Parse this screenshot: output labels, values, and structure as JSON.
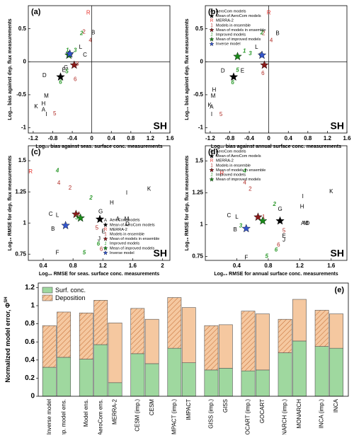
{
  "chart_data": [
    {
      "type": "scatter",
      "panel_label": "(a)",
      "annotation": "SH",
      "x_label": "Log₁₀ bias against seas. surface conc. measurements",
      "y_label": "Log₁₀ bias against dep. flux measurements",
      "xlim": [
        -1.3,
        1.6
      ],
      "ylim": [
        -1.08,
        0.85
      ],
      "xticks": [
        -1.2,
        -0.8,
        -0.4,
        0,
        0.4,
        0.8,
        1.2,
        1.6
      ],
      "yticks": [
        -1,
        -0.5,
        0,
        0.5
      ],
      "crosshair": {
        "x": 0,
        "y": 0
      },
      "series": [
        {
          "name": "AeroCom models",
          "color": "#000000",
          "legend_symbol": "A",
          "labels": [
            "A",
            "B",
            "C",
            "D",
            "E",
            "G",
            "H",
            "I",
            "K",
            "L",
            "M"
          ],
          "x": [
            -0.99,
            0.03,
            -0.14,
            -0.97,
            -0.57,
            -0.53,
            -0.99,
            -0.93,
            -1.14,
            -0.23,
            -0.93
          ],
          "y": [
            -0.73,
            0.44,
            0.1,
            -0.21,
            -0.13,
            -0.09,
            -0.64,
            -0.8,
            -0.68,
            0.22,
            -0.52
          ]
        },
        {
          "name": "Mean of AeroCom models",
          "color": "#000000",
          "x": [
            -0.64
          ],
          "y": [
            -0.23
          ]
        },
        {
          "name": "MERRA-2",
          "color": "#e8302a",
          "legend_symbol": "R",
          "labels": [
            "R"
          ],
          "x": [
            -0.07
          ],
          "y": [
            0.74
          ]
        },
        {
          "name": "Models in ensemble",
          "color": "#b02a24",
          "legend_symbol": "1",
          "labels": [
            "2",
            "3",
            "4",
            "5",
            "6"
          ],
          "x": [
            -0.16,
            -0.3,
            -0.03,
            -0.76,
            -0.34
          ],
          "y": [
            0.45,
            -0.04,
            0.32,
            -0.79,
            -0.27
          ]
        },
        {
          "name": "Mean of models in ensemble",
          "color": "#8b1a1a",
          "x": [
            -0.36
          ],
          "y": [
            -0.05
          ]
        },
        {
          "name": "Improved models",
          "color": "#2e9a2e",
          "legend_symbol": "1",
          "italic": true,
          "labels": [
            "1",
            "2",
            "3",
            "5",
            "6"
          ],
          "x": [
            -0.5,
            -0.21,
            -0.34,
            -0.51,
            -0.64
          ],
          "y": [
            0.17,
            0.43,
            0.17,
            -0.15,
            -0.31
          ]
        },
        {
          "name": "Mean of improved models",
          "color": "#1a8a1a",
          "x": [
            -0.47
          ],
          "y": [
            0.1
          ]
        },
        {
          "name": "Inverse model",
          "color": "#3355cc",
          "x": [
            -0.45
          ],
          "y": [
            0.12
          ]
        }
      ]
    },
    {
      "type": "scatter",
      "panel_label": "(b)",
      "annotation": "SH",
      "x_label": "Log₁₀ bias against annual surface conc. measurements",
      "y_label": "Log₁₀ bias against dep. flux measurements",
      "xlim": [
        -1.3,
        1.6
      ],
      "ylim": [
        -1.08,
        0.85
      ],
      "xticks": [
        -1.2,
        -0.8,
        -0.4,
        0,
        0.4,
        0.8,
        1.2,
        1.6
      ],
      "yticks": [
        -1,
        -0.5,
        0,
        0.5
      ],
      "crosshair": {
        "x": 0,
        "y": 0
      },
      "legend": "upper left",
      "series": [
        {
          "name": "AeroCom models",
          "color": "#000000",
          "legend_symbol": "A",
          "labels": [
            "A",
            "B",
            "C",
            "D",
            "E",
            "H",
            "I",
            "K",
            "L",
            "M"
          ],
          "x": [
            -1.17,
            0.18,
            -0.16,
            -0.94,
            -0.54,
            -1.12,
            -1.17,
            -1.21,
            -0.25,
            -1.14
          ],
          "y": [
            -0.69,
            0.43,
            0.1,
            -0.14,
            -0.14,
            -0.43,
            -0.8,
            -0.66,
            0.22,
            -0.52
          ]
        },
        {
          "name": "Mean of AeroCom models",
          "color": "#000000",
          "x": [
            -0.72
          ],
          "y": [
            -0.23
          ]
        },
        {
          "name": "MERRA-2",
          "color": "#e8302a",
          "legend_symbol": "R",
          "labels": [
            "R"
          ],
          "x": [
            0
          ],
          "y": [
            0.74
          ]
        },
        {
          "name": "Models in ensemble",
          "color": "#b02a24",
          "legend_symbol": "1",
          "labels": [
            "2",
            "4",
            "5",
            "6"
          ],
          "x": [
            -0.11,
            0.05,
            -0.98,
            -0.12
          ],
          "y": [
            0.43,
            0.32,
            -0.8,
            -0.18
          ]
        },
        {
          "name": "Mean of models in ensemble",
          "color": "#8b1a1a",
          "x": [
            -0.09
          ],
          "y": [
            -0.05
          ]
        },
        {
          "name": "Improved models",
          "color": "#2e9a2e",
          "legend_symbol": "1",
          "italic": true,
          "labels": [
            "1",
            "2",
            "3",
            "5",
            "6"
          ],
          "x": [
            -0.5,
            -0.14,
            -0.38,
            -0.64,
            -0.74
          ],
          "y": [
            0.16,
            0.44,
            0.12,
            -0.13,
            -0.32
          ]
        },
        {
          "name": "Mean of improved models",
          "color": "#1a8a1a",
          "x": [
            -0.64
          ],
          "y": [
            0.08
          ]
        },
        {
          "name": "Inverse model",
          "color": "#3355cc",
          "x": [
            -0.14
          ],
          "y": [
            0.1
          ]
        }
      ]
    },
    {
      "type": "scatter",
      "panel_label": "(c)",
      "annotation": "SH",
      "x_label": "Log₁₀ RMSE for seas. surface conc. measurements",
      "y_label": "Log₁₀ RMSE for dep. flux measurements",
      "xlim": [
        0.2,
        2.1
      ],
      "ylim": [
        0.7,
        1.62
      ],
      "xticks": [
        0.4,
        0.8,
        1.2,
        1.6,
        2
      ],
      "yticks": [
        0.75,
        1,
        1.25,
        1.5
      ],
      "legend": "lower right",
      "series": [
        {
          "name": "AeroCom models",
          "color": "#000000",
          "legend_symbol": "A",
          "labels": [
            "A",
            "B",
            "C",
            "D",
            "E",
            "F",
            "G",
            "H",
            "I",
            "J",
            "K",
            "L",
            "M"
          ],
          "x": [
            1.4,
            0.53,
            0.5,
            1.53,
            1.21,
            0.59,
            1.17,
            1.32,
            1.52,
            1.15,
            1.82,
            0.59,
            1.52
          ],
          "y": [
            1.03,
            0.95,
            1.07,
            0.99,
            0.93,
            0.76,
            1.09,
            1.16,
            1.24,
            0.87,
            1.27,
            1.06,
            1.03
          ]
        },
        {
          "name": "Mean of AeroCom models",
          "color": "#000000",
          "x": [
            1.16
          ],
          "y": [
            1.03
          ]
        },
        {
          "name": "MERRA-2",
          "color": "#e8302a",
          "legend_symbol": "R",
          "labels": [
            "R"
          ],
          "x": [
            0.23
          ],
          "y": [
            1.41
          ]
        },
        {
          "name": "Models in ensemble",
          "color": "#b02a24",
          "legend_symbol": "1",
          "labels": [
            "1",
            "2",
            "4",
            "5",
            "6"
          ],
          "x": [
            0.88,
            0.76,
            0.61,
            1.12,
            1.18
          ],
          "y": [
            1.07,
            1.28,
            1.32,
            0.96,
            0.79
          ]
        },
        {
          "name": "Mean of models in ensemble",
          "color": "#8b1a1a",
          "x": [
            0.84
          ],
          "y": [
            1.07
          ]
        },
        {
          "name": "Improved models",
          "color": "#2e9a2e",
          "legend_symbol": "1",
          "italic": true,
          "labels": [
            "2",
            "3",
            "4",
            "5",
            "6"
          ],
          "x": [
            1.04,
            0.85,
            0.59,
            0.95,
            1.14
          ],
          "y": [
            1.2,
            1.04,
            1.42,
            0.76,
            0.83
          ]
        },
        {
          "name": "Mean of improved models",
          "color": "#1a8a1a",
          "x": [
            0.9
          ],
          "y": [
            1.04
          ]
        },
        {
          "name": "Inverse model",
          "color": "#3355cc",
          "x": [
            0.7
          ],
          "y": [
            0.98
          ]
        }
      ]
    },
    {
      "type": "scatter",
      "panel_label": "(d)",
      "annotation": "SH",
      "x_label": "Log₁₀ RMSE for annual surface conc. measurements",
      "y_label": "Log₁₀ RMSE for dep. flux measurements",
      "xlim": [
        0,
        1.8
      ],
      "ylim": [
        0.72,
        1.62
      ],
      "xticks": [
        0.4,
        0.8,
        1.2,
        1.6
      ],
      "yticks": [
        0.75,
        1,
        1.25,
        1.5
      ],
      "legend": "upper left",
      "series": [
        {
          "name": "AeroCom models",
          "color": "#000000",
          "legend_symbol": "A",
          "labels": [
            "A",
            "B",
            "C",
            "D",
            "E",
            "F",
            "G",
            "H",
            "I",
            "J",
            "K",
            "L",
            "M"
          ],
          "x": [
            1.24,
            0.38,
            0.3,
            1.3,
            1.0,
            0.52,
            0.95,
            1.23,
            1.24,
            1.0,
            1.6,
            0.4,
            1.28
          ],
          "y": [
            1.01,
            0.96,
            1.07,
            1.01,
            0.91,
            0.74,
            1.12,
            1.14,
            1.22,
            0.88,
            1.26,
            1.06,
            1.01
          ]
        },
        {
          "name": "Mean of AeroCom models",
          "color": "#000000",
          "x": [
            0.95
          ],
          "y": [
            1.03
          ]
        },
        {
          "name": "MERRA-2",
          "color": "#e8302a",
          "legend_symbol": "R",
          "labels": [
            "R"
          ],
          "x": [
            0.21
          ],
          "y": [
            1.4
          ]
        },
        {
          "name": "Models in ensemble",
          "color": "#b02a24",
          "legend_symbol": "1",
          "labels": [
            "1",
            "2",
            "4",
            "5",
            "6"
          ],
          "x": [
            0.74,
            0.57,
            0.5,
            1.0,
            0.93
          ],
          "y": [
            1.06,
            1.28,
            1.33,
            0.95,
            0.84
          ]
        },
        {
          "name": "Mean of models in ensemble",
          "color": "#8b1a1a",
          "x": [
            0.67
          ],
          "y": [
            1.06
          ]
        },
        {
          "name": "Improved models",
          "color": "#2e9a2e",
          "legend_symbol": "1",
          "italic": true,
          "labels": [
            "2",
            "3",
            "4",
            "5",
            "6"
          ],
          "x": [
            0.88,
            0.45,
            0.5,
            0.78,
            0.9
          ],
          "y": [
            1.16,
            0.99,
            1.42,
            0.75,
            0.8
          ]
        },
        {
          "name": "Mean of improved models",
          "color": "#1a8a1a",
          "x": [
            0.73
          ],
          "y": [
            1.03
          ]
        },
        {
          "name": "Inverse model",
          "color": "#3355cc",
          "x": [
            0.52
          ],
          "y": [
            0.97
          ],
          "in_legend": false
        }
      ]
    },
    {
      "type": "stacked_bar",
      "panel_label": "(e)",
      "y_label": "Normalized model error, Φ",
      "y_label_superscript": "SH",
      "ylim": [
        0,
        1.25
      ],
      "yticks": [
        0,
        0.2,
        0.4,
        0.6,
        0.8,
        1,
        1.2
      ],
      "legend": "upper left",
      "categories": [
        "Inverse model",
        "Imp. model ens.",
        "Model ens.",
        "AeroCom ens.",
        "MERRA-2",
        "CESM (imp.)",
        "CESM",
        "IMPACT (imp.)",
        "IMPACT",
        "GISS (imp.)",
        "GISS",
        "GOCART (imp.)",
        "GOCART",
        "MONARCH (imp.)",
        "MONARCH",
        "INCA (imp.)",
        "INCA"
      ],
      "hatched": [
        true,
        true,
        true,
        true,
        false,
        true,
        false,
        true,
        false,
        true,
        false,
        true,
        false,
        true,
        false,
        true,
        false
      ],
      "series": [
        {
          "name": "Surf. conc.",
          "color": "#9fd89f",
          "values": [
            0.32,
            0.43,
            0.41,
            0.57,
            0.15,
            0.47,
            0.36,
            0.53,
            0.37,
            0.29,
            0.31,
            0.28,
            0.29,
            0.48,
            0.61,
            0.55,
            0.53
          ]
        },
        {
          "name": "Deposition",
          "color": "#f5c8a0",
          "values": [
            0.46,
            0.5,
            0.51,
            0.49,
            0.66,
            0.5,
            0.49,
            0.56,
            0.61,
            0.49,
            0.48,
            0.66,
            0.62,
            0.37,
            0.46,
            0.4,
            0.38
          ]
        }
      ]
    }
  ]
}
